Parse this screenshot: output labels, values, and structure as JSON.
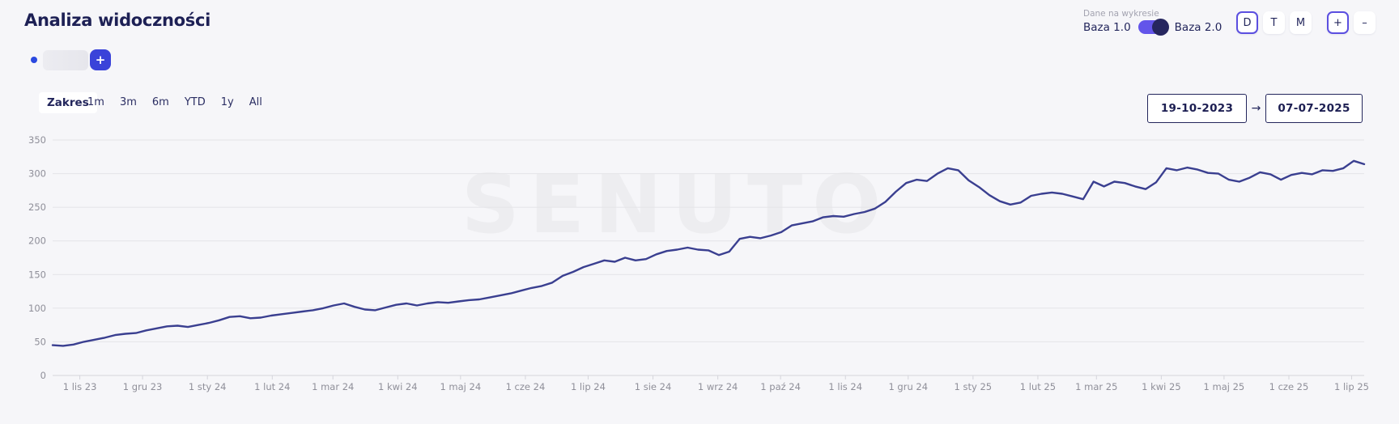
{
  "header": {
    "title": "Analiza widoczności",
    "chart_data_label": "Dane na wykresie",
    "baza_left": "Baza 1.0",
    "baza_right": "Baza 2.0",
    "baza_toggle_state": "Baza 2.0",
    "granularity_buttons": [
      "D",
      "T",
      "M"
    ],
    "granularity_active": "D",
    "zoom_in_label": "+",
    "zoom_out_label": "–"
  },
  "project_pill": {
    "add_label": "+"
  },
  "range_bar": {
    "label": "Zakres",
    "options": [
      "1m",
      "3m",
      "6m",
      "YTD",
      "1y",
      "All"
    ],
    "date_from": "19-10-2023",
    "date_to": "07-07-2025",
    "arrow": "→"
  },
  "watermark": "SENUTO",
  "colors": {
    "accent_indigo": "#5b4fe0",
    "accent_blue": "#3a43d9",
    "toggle_track": "#6355ea",
    "toggle_knob": "#26265f",
    "navy_text": "#23265c",
    "line": "#3a3f90",
    "gridline": "#e4e4e8",
    "axis_line": "#d5d5db",
    "axis_text": "#8f8f99",
    "watermark": "#ededf0",
    "page_bg": "#f6f6f9"
  },
  "chart_data": {
    "type": "line",
    "title": "Analiza widoczności",
    "xlabel": "",
    "ylabel": "",
    "ylim": [
      0,
      350
    ],
    "y_ticks": [
      0,
      50,
      100,
      150,
      200,
      250,
      300,
      350
    ],
    "grid": true,
    "legend": false,
    "total_days": 627,
    "x_range_dates": [
      "19-10-2023",
      "07-07-2025"
    ],
    "x_ticks": [
      {
        "label": "1 lis 23",
        "day": 13
      },
      {
        "label": "1 gru 23",
        "day": 43
      },
      {
        "label": "1 sty 24",
        "day": 74
      },
      {
        "label": "1 lut 24",
        "day": 105
      },
      {
        "label": "1 mar 24",
        "day": 134
      },
      {
        "label": "1 kwi 24",
        "day": 165
      },
      {
        "label": "1 maj 24",
        "day": 195
      },
      {
        "label": "1 cze 24",
        "day": 226
      },
      {
        "label": "1 lip 24",
        "day": 256
      },
      {
        "label": "1 sie 24",
        "day": 287
      },
      {
        "label": "1 wrz 24",
        "day": 318
      },
      {
        "label": "1 paź 24",
        "day": 348
      },
      {
        "label": "1 lis 24",
        "day": 379
      },
      {
        "label": "1 gru 24",
        "day": 409
      },
      {
        "label": "1 sty 25",
        "day": 440
      },
      {
        "label": "1 lut 25",
        "day": 471
      },
      {
        "label": "1 mar 25",
        "day": 499
      },
      {
        "label": "1 kwi 25",
        "day": 530
      },
      {
        "label": "1 maj 25",
        "day": 560
      },
      {
        "label": "1 cze 25",
        "day": 591
      },
      {
        "label": "1 lip 25",
        "day": 621
      }
    ],
    "series": [
      {
        "name": "Baza 2.0",
        "values": [
          45,
          44,
          46,
          50,
          53,
          56,
          60,
          62,
          63,
          67,
          70,
          73,
          74,
          72,
          75,
          78,
          82,
          87,
          88,
          85,
          86,
          89,
          91,
          93,
          95,
          97,
          100,
          104,
          107,
          102,
          98,
          97,
          101,
          105,
          107,
          104,
          107,
          109,
          108,
          110,
          112,
          113,
          116,
          119,
          122,
          126,
          130,
          133,
          138,
          148,
          154,
          161,
          166,
          171,
          169,
          175,
          171,
          173,
          180,
          185,
          187,
          190,
          187,
          186,
          179,
          184,
          203,
          206,
          204,
          208,
          213,
          223,
          226,
          229,
          235,
          237,
          236,
          240,
          243,
          248,
          258,
          273,
          286,
          291,
          289,
          300,
          308,
          305,
          290,
          280,
          268,
          259,
          254,
          257,
          267,
          270,
          272,
          270,
          266,
          262,
          288,
          281,
          288,
          286,
          281,
          277,
          287,
          308,
          305,
          309,
          306,
          301,
          300,
          291,
          288,
          294,
          302,
          299,
          291,
          298,
          301,
          299,
          305,
          304,
          308,
          319,
          314
        ]
      }
    ]
  }
}
